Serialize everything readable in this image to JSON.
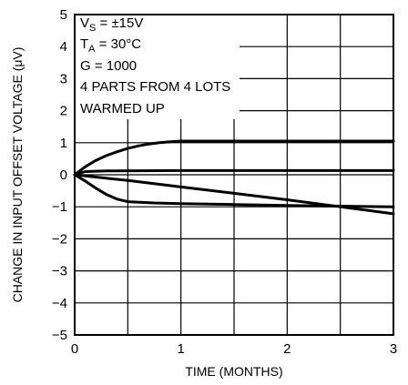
{
  "chart_data": {
    "type": "line",
    "xlabel": "TIME (MONTHS)",
    "ylabel": "CHANGE IN INPUT OFFSET VOLTAGE (μV)",
    "xlim": [
      0,
      3
    ],
    "ylim": [
      -5,
      5
    ],
    "x_ticks": [
      "0",
      "1",
      "2",
      "3"
    ],
    "y_ticks": [
      "5",
      "4",
      "3",
      "2",
      "1",
      "0",
      "−1",
      "−2",
      "−3",
      "−4",
      "−5"
    ],
    "x_grid_step": 0.5,
    "y_grid_step": 1,
    "grid": true,
    "conditions": {
      "vs": {
        "sym": "V",
        "sub": "S",
        "rest": " = ±15V"
      },
      "ta": {
        "sym": "T",
        "sub": "A",
        "rest": " = 30°C"
      },
      "gain": "G = 1000",
      "parts": "4 PARTS FROM 4 LOTS",
      "warm": "WARMED UP"
    },
    "series": [
      {
        "x": [
          0,
          0.1,
          0.2,
          0.3,
          0.4,
          0.5,
          0.6,
          0.7,
          0.8,
          0.9,
          1.0,
          1.5,
          2.0,
          2.5,
          3.0
        ],
        "y": [
          0,
          0.25,
          0.45,
          0.6,
          0.72,
          0.82,
          0.9,
          0.96,
          1.0,
          1.03,
          1.05,
          1.05,
          1.05,
          1.05,
          1.05
        ]
      },
      {
        "x": [
          0,
          0.1,
          0.3,
          1.0,
          2.0,
          3.0
        ],
        "y": [
          0,
          0.1,
          0.12,
          0.13,
          0.13,
          0.13
        ]
      },
      {
        "x": [
          0,
          0.1,
          0.2,
          0.3,
          0.4,
          0.5,
          0.75,
          1.0,
          1.5,
          2.0,
          2.5,
          3.0
        ],
        "y": [
          0,
          -0.2,
          -0.42,
          -0.62,
          -0.76,
          -0.84,
          -0.88,
          -0.9,
          -0.93,
          -0.96,
          -0.98,
          -1.0
        ]
      },
      {
        "x": [
          0,
          0.5,
          1.0,
          1.5,
          2.0,
          2.5,
          3.0
        ],
        "y": [
          0,
          -0.18,
          -0.38,
          -0.58,
          -0.78,
          -1.0,
          -1.22
        ]
      }
    ]
  }
}
